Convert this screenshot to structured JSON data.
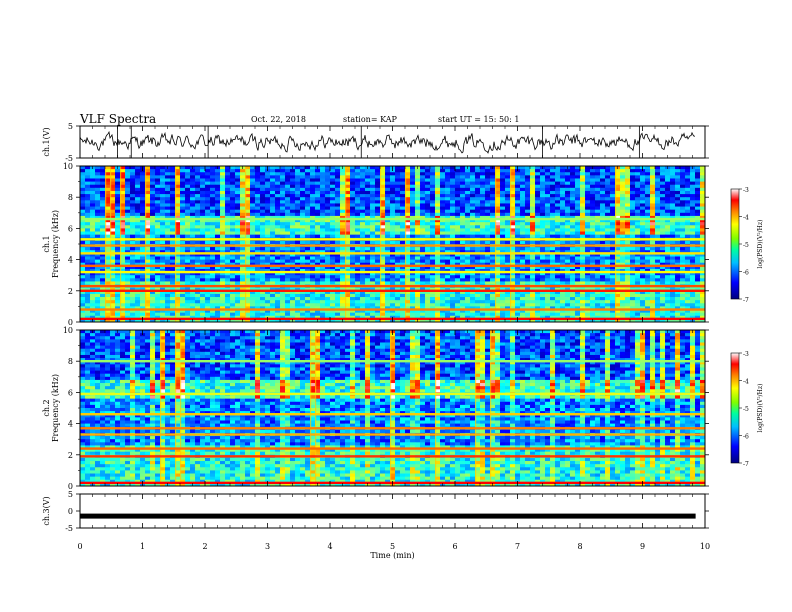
{
  "header": {
    "title": "VLF Spectra",
    "date": "Oct. 22, 2018",
    "station": "station= KAP",
    "start": "start  UT =   15: 50: 1"
  },
  "chart_data": [
    {
      "type": "line",
      "panel": "ch1-waveform",
      "ylabel": "ch.1(V)",
      "ylim": [
        -5,
        5
      ],
      "yticks": [
        "5",
        "-5"
      ],
      "xlim": [
        0,
        10
      ],
      "x_extent_min": 9.85,
      "description_values": {
        "baseline_v": 0,
        "noise_amplitude_v": 2.5
      }
    },
    {
      "type": "heatmap",
      "panel": "ch1-spectrogram",
      "ylabel": "ch.1\nFrequency (kHz)",
      "ylabel_line1": "ch.1",
      "ylabel_line2": "Frequency (kHz)",
      "ylim": [
        0,
        10
      ],
      "yticks": [
        "0",
        "2",
        "4",
        "6",
        "8",
        "10"
      ],
      "xlim": [
        0,
        10
      ],
      "colorbar": {
        "label": "log(PSD)(V²/Hz)",
        "range": [
          -7,
          -3
        ],
        "ticks": [
          "-3",
          "-4",
          "-5",
          "-6",
          "-7"
        ]
      },
      "bands_khz": [
        {
          "f": 0.2,
          "level": -3.5
        },
        {
          "f": 0.8,
          "level": -4.0
        },
        {
          "f": 2.0,
          "level": -3.6
        },
        {
          "f": 2.3,
          "level": -3.8
        },
        {
          "f": 3.2,
          "level": -4.5
        },
        {
          "f": 3.6,
          "level": -3.9
        },
        {
          "f": 4.4,
          "level": -4.4
        },
        {
          "f": 4.9,
          "level": -4.1
        },
        {
          "f": 5.3,
          "level": -4.5
        },
        {
          "f": 6.6,
          "level": -4.9
        }
      ]
    },
    {
      "type": "heatmap",
      "panel": "ch2-spectrogram",
      "ylabel_line1": "ch.2",
      "ylabel_line2": "Frequency (kHz)",
      "ylim": [
        0,
        10
      ],
      "yticks": [
        "0",
        "2",
        "4",
        "6",
        "8",
        "10"
      ],
      "xlim": [
        0,
        10
      ],
      "colorbar": {
        "label": "log(PSD)(V²/Hz)",
        "range": [
          -7,
          -3
        ],
        "ticks": [
          "-3",
          "-4",
          "-5",
          "-6",
          "-7"
        ]
      },
      "bands_khz": [
        {
          "f": 0.2,
          "level": -3.5
        },
        {
          "f": 1.9,
          "level": -3.7
        },
        {
          "f": 2.4,
          "level": -3.9
        },
        {
          "f": 3.3,
          "level": -4.2
        },
        {
          "f": 3.7,
          "level": -4.0
        },
        {
          "f": 4.6,
          "level": -4.3
        },
        {
          "f": 5.9,
          "level": -4.6
        },
        {
          "f": 8.0,
          "level": -4.9
        }
      ]
    },
    {
      "type": "line",
      "panel": "ch3-waveform",
      "ylabel": "ch.3(V)",
      "ylim": [
        -5,
        5
      ],
      "yticks": [
        "5",
        "0",
        "-5"
      ],
      "xlim": [
        0,
        10
      ],
      "xticks": [
        "0",
        "1",
        "2",
        "3",
        "4",
        "5",
        "6",
        "7",
        "8",
        "9",
        "10"
      ],
      "xlabel": "Time  (min)",
      "constant_value_v": -1.5,
      "x_extent_min": 9.85
    }
  ],
  "colors": {
    "colormap": [
      "#00007f",
      "#0000ff",
      "#007fff",
      "#00ffff",
      "#7fff7f",
      "#ffff00",
      "#ff7f00",
      "#ff0000",
      "#ffffff"
    ]
  }
}
